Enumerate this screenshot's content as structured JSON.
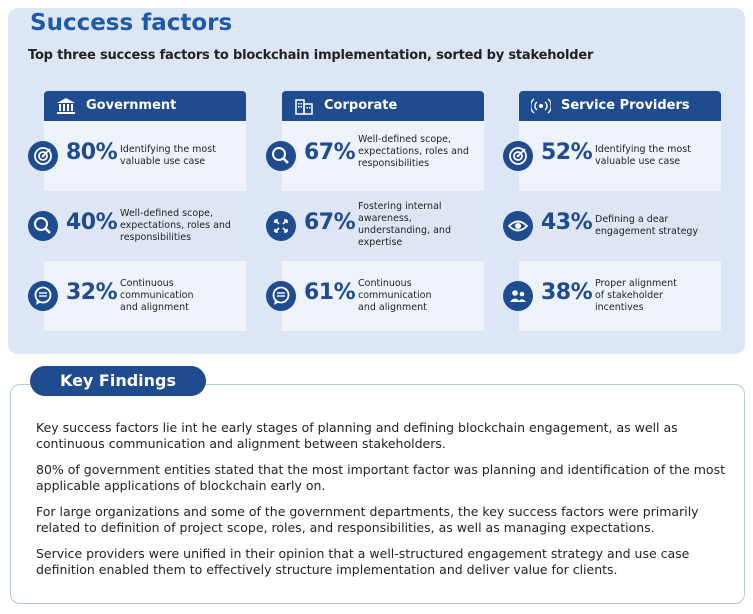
{
  "header": {
    "title": "Success factors",
    "subtitle": "Top three success factors to blockchain implementation, sorted by stakeholder"
  },
  "columns": [
    {
      "label": "Government",
      "icon": "government-building-icon",
      "factors": [
        {
          "percent": "80%",
          "icon": "target-icon",
          "text": "Identifying the most\nvaluable use case"
        },
        {
          "percent": "40%",
          "icon": "magnifier-icon",
          "text": "Well-defined scope,\nexpectations, roles and\nresponsibilities"
        },
        {
          "percent": "32%",
          "icon": "chat-bubble-icon",
          "text": "Continuous\ncommunication\nand alignment"
        }
      ]
    },
    {
      "label": "Corporate",
      "icon": "office-buildings-icon",
      "factors": [
        {
          "percent": "67%",
          "icon": "magnifier-icon",
          "text": "Well-defined scope,\nexpectations, roles and\nresponsibilities"
        },
        {
          "percent": "67%",
          "icon": "expand-arrows-icon",
          "text": "Fostering internal\nawareness,\nunderstanding, and\nexpertise"
        },
        {
          "percent": "61%",
          "icon": "chat-bubble-icon",
          "text": "Continuous\ncommunication\nand alignment"
        }
      ]
    },
    {
      "label": "Service Providers",
      "icon": "broadcast-signal-icon",
      "factors": [
        {
          "percent": "52%",
          "icon": "target-icon",
          "text": "Identifying the most\nvaluable use case"
        },
        {
          "percent": "43%",
          "icon": "eye-icon",
          "text": "Defining a dear\nengagement strategy"
        },
        {
          "percent": "38%",
          "icon": "people-group-icon",
          "text": "Proper alignment\nof stakeholder\nincentives"
        }
      ]
    }
  ],
  "key_findings": {
    "label": "Key Findings",
    "paragraphs": [
      "Key success factors lie int he early stages of planning and defining blockchain engagement, as well as continuous communication and alignment between stakeholders.",
      "80% of government entities stated that the most important factor was planning and identification of the most applicable applications of blockchain early on.",
      "For large organizations and some of the government departments, the key success factors were primarily related to definition of project scope, roles, and responsibilities, as well as managing expectations.",
      "Service providers were unified in their opinion that a well-structured engagement strategy and use case definition enabled them to effectively structure implementation and deliver value for clients."
    ]
  },
  "colors": {
    "accent": "#1f4b8f",
    "title": "#1f5aa8",
    "panel": "#dde6f5"
  }
}
